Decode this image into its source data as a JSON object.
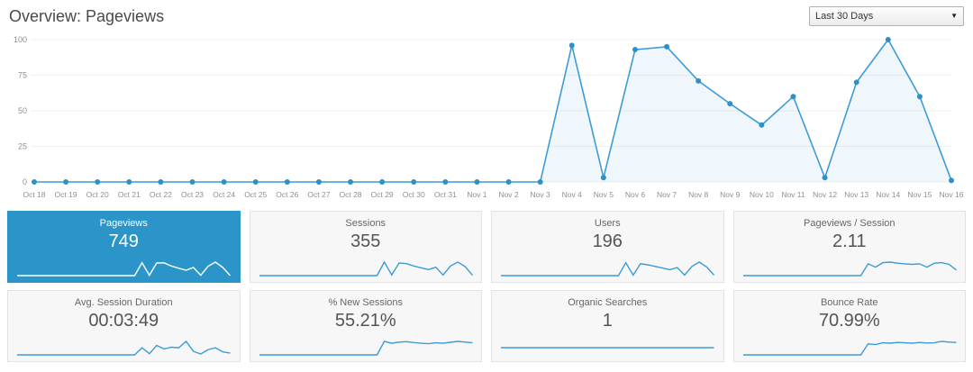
{
  "header": {
    "title": "Overview: Pageviews",
    "date_range": {
      "selected": "Last 30 Days"
    }
  },
  "chart_data": {
    "type": "line",
    "title": "Pageviews over last 30 days",
    "x": [
      "Oct 18",
      "Oct 19",
      "Oct 20",
      "Oct 21",
      "Oct 22",
      "Oct 23",
      "Oct 24",
      "Oct 25",
      "Oct 26",
      "Oct 27",
      "Oct 28",
      "Oct 29",
      "Oct 30",
      "Oct 31",
      "Nov 1",
      "Nov 2",
      "Nov 3",
      "Nov 4",
      "Nov 5",
      "Nov 6",
      "Nov 7",
      "Nov 8",
      "Nov 9",
      "Nov 10",
      "Nov 11",
      "Nov 12",
      "Nov 13",
      "Nov 14",
      "Nov 15",
      "Nov 16"
    ],
    "values": [
      0,
      0,
      0,
      0,
      0,
      0,
      0,
      0,
      0,
      0,
      0,
      0,
      0,
      0,
      0,
      0,
      0,
      96,
      3,
      93,
      95,
      71,
      55,
      40,
      60,
      3,
      70,
      100,
      60,
      1
    ],
    "ylim": [
      0,
      100
    ],
    "yticks": [
      0,
      25,
      50,
      75,
      100
    ],
    "grid": true,
    "legend": "none"
  },
  "colors": {
    "line": "#3d9bd5",
    "point": "#2f8fc7",
    "area_fill": "rgba(61,155,213,0.08)",
    "grid_line": "#f0f0f0",
    "axis_text": "#8f8f8f",
    "selected_box_bg": "#2b95c9",
    "sparkline": "#3d9bd5",
    "sparkline_selected": "#ffffff"
  },
  "stats": [
    {
      "label": "Pageviews",
      "value": "749",
      "selected": true,
      "sparkline": [
        0,
        0,
        0,
        0,
        0,
        0,
        0,
        0,
        0,
        0,
        0,
        0,
        0,
        0,
        0,
        0,
        0,
        96,
        3,
        93,
        95,
        71,
        55,
        40,
        60,
        3,
        70,
        100,
        60,
        1
      ]
    },
    {
      "label": "Sessions",
      "value": "355",
      "selected": false,
      "sparkline": [
        0,
        0,
        0,
        0,
        0,
        0,
        0,
        0,
        0,
        0,
        0,
        0,
        0,
        0,
        0,
        0,
        0,
        45,
        2,
        42,
        40,
        32,
        26,
        20,
        28,
        2,
        32,
        45,
        30,
        1
      ]
    },
    {
      "label": "Users",
      "value": "196",
      "selected": false,
      "sparkline": [
        0,
        0,
        0,
        0,
        0,
        0,
        0,
        0,
        0,
        0,
        0,
        0,
        0,
        0,
        0,
        0,
        0,
        24,
        1,
        22,
        20,
        17,
        14,
        11,
        15,
        1,
        17,
        25,
        16,
        1
      ]
    },
    {
      "label": "Pageviews / Session",
      "value": "2.11",
      "selected": false,
      "sparkline": [
        0,
        0,
        0,
        0,
        0,
        0,
        0,
        0,
        0,
        0,
        0,
        0,
        0,
        0,
        0,
        0,
        0,
        2.1,
        1.5,
        2.3,
        2.4,
        2.2,
        2.1,
        2.0,
        2.1,
        1.5,
        2.2,
        2.3,
        2.0,
        1.0
      ]
    },
    {
      "label": "Avg. Session Duration",
      "value": "00:03:49",
      "selected": false,
      "sparkline": [
        0,
        0,
        0,
        0,
        0,
        0,
        0,
        0,
        0,
        0,
        0,
        0,
        0,
        0,
        0,
        0,
        0,
        120,
        20,
        160,
        100,
        130,
        120,
        229,
        60,
        15,
        90,
        120,
        50,
        30
      ]
    },
    {
      "label": "% New Sessions",
      "value": "55.21%",
      "selected": false,
      "sparkline": [
        0,
        0,
        0,
        0,
        0,
        0,
        0,
        0,
        0,
        0,
        0,
        0,
        0,
        0,
        0,
        0,
        0,
        58,
        50,
        55,
        57,
        53,
        50,
        48,
        52,
        50,
        54,
        58,
        55,
        52
      ]
    },
    {
      "label": "Organic Searches",
      "value": "1",
      "selected": false,
      "sparkline": [
        0,
        0,
        0,
        0,
        0,
        0,
        0,
        0,
        0,
        0,
        0,
        0,
        0,
        0,
        0,
        0,
        0,
        0,
        0,
        0,
        0,
        0,
        0,
        0,
        0,
        0,
        0,
        0,
        0,
        0
      ]
    },
    {
      "label": "Bounce Rate",
      "value": "70.99%",
      "selected": false,
      "sparkline": [
        0,
        0,
        0,
        0,
        0,
        0,
        0,
        0,
        0,
        0,
        0,
        0,
        0,
        0,
        0,
        0,
        0,
        62,
        58,
        68,
        66,
        70,
        68,
        66,
        70,
        67,
        68,
        76,
        72,
        70
      ]
    }
  ]
}
